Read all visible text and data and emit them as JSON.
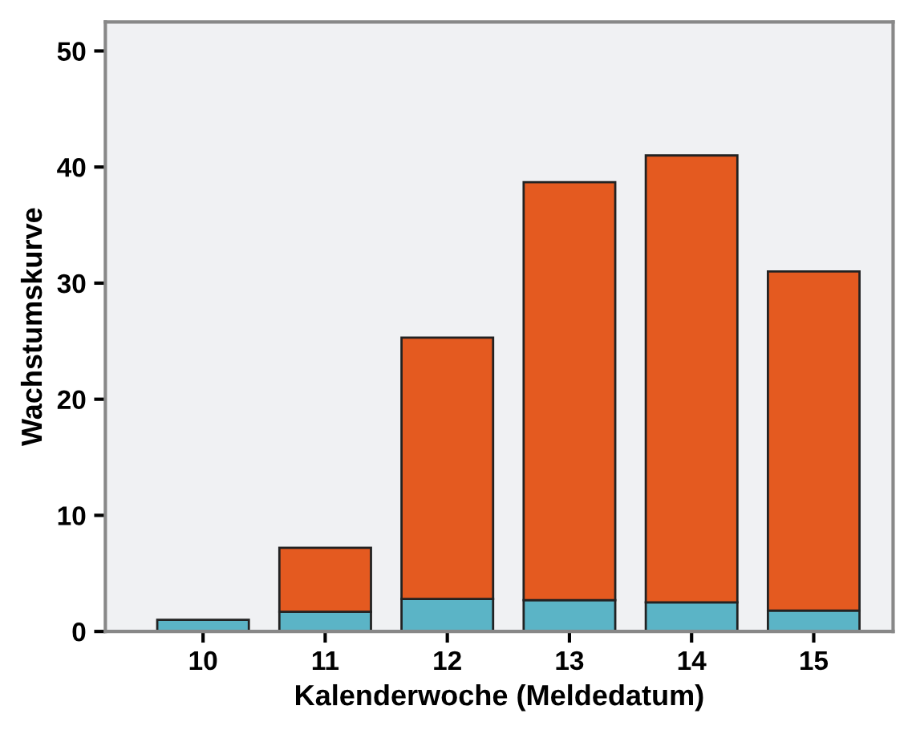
{
  "chart_data": {
    "type": "bar",
    "stacked": true,
    "xlabel": "Kalenderwoche (Meldedatum)",
    "ylabel": "Wachstumskurve",
    "categories": [
      "10",
      "11",
      "12",
      "13",
      "14",
      "15"
    ],
    "series": [
      {
        "color": "#5bb4c6",
        "values": [
          1.0,
          1.7,
          2.8,
          2.7,
          2.5,
          1.8
        ]
      },
      {
        "color": "#e45a20",
        "values": [
          null,
          5.5,
          22.5,
          36.0,
          38.5,
          29.2
        ]
      }
    ],
    "ylim": [
      0,
      52.5
    ],
    "yticks": [
      0,
      10,
      20,
      30,
      40,
      50
    ],
    "grid": false,
    "legend": false
  }
}
